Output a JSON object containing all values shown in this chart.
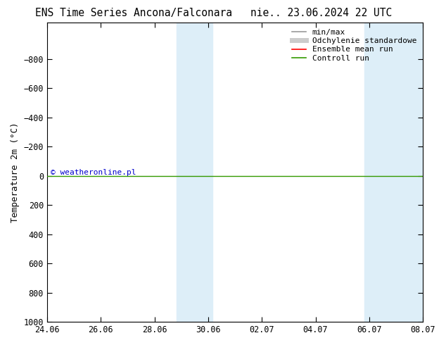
{
  "title_left": "ENS Time Series Ancona/Falconara",
  "title_right": "nie.. 23.06.2024 22 UTC",
  "ylabel": "Temperature 2m (°C)",
  "watermark": "© weatheronline.pl",
  "ylim_bottom": 1000,
  "ylim_top": -1050,
  "yticks": [
    -800,
    -600,
    -400,
    -200,
    0,
    200,
    400,
    600,
    800,
    1000
  ],
  "x_start": 0,
  "x_end": 14,
  "xtick_positions": [
    0,
    2,
    4,
    6,
    8,
    10,
    12,
    14
  ],
  "xtick_labels": [
    "24.06",
    "26.06",
    "28.06",
    "30.06",
    "02.07",
    "04.07",
    "06.07",
    "08.07"
  ],
  "background_color": "#ffffff",
  "plot_bg_color": "#ffffff",
  "blue_bands": [
    [
      4.83,
      5.5
    ],
    [
      5.5,
      6.17
    ],
    [
      11.83,
      12.5
    ],
    [
      12.5,
      14.0
    ]
  ],
  "blue_band_color": "#ddeef8",
  "control_run_y": 0,
  "control_run_color": "#339900",
  "ensemble_mean_color": "#ff0000",
  "minmax_color": "#999999",
  "std_color": "#cccccc",
  "legend_entries": [
    {
      "label": "min/max",
      "color": "#999999",
      "lw": 1.2
    },
    {
      "label": "Odchylenie standardowe",
      "color": "#cccccc",
      "lw": 5
    },
    {
      "label": "Ensemble mean run",
      "color": "#ff0000",
      "lw": 1.2
    },
    {
      "label": "Controll run",
      "color": "#339900",
      "lw": 1.2
    }
  ],
  "title_fontsize": 10.5,
  "axis_fontsize": 9,
  "tick_fontsize": 8.5,
  "watermark_fontsize": 8,
  "watermark_color": "#0000cc",
  "legend_fontsize": 8
}
